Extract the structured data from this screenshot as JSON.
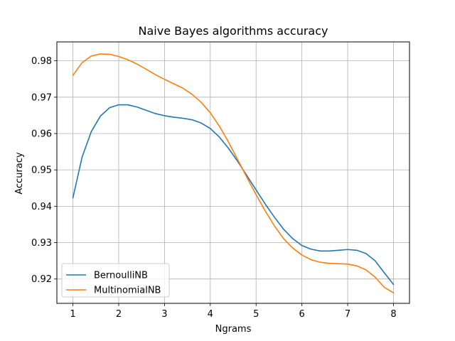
{
  "chart_data": {
    "type": "line",
    "title": "Naive Bayes algorithms accuracy",
    "xlabel": "Ngrams",
    "ylabel": "Accuracy",
    "xlim": [
      0.65,
      8.35
    ],
    "ylim": [
      0.9133,
      0.9852
    ],
    "x_ticks": [
      1,
      2,
      3,
      4,
      5,
      6,
      7,
      8
    ],
    "y_ticks": [
      0.92,
      0.93,
      0.94,
      0.95,
      0.96,
      0.97,
      0.98
    ],
    "y_tick_labels": [
      "0.92",
      "0.93",
      "0.94",
      "0.95",
      "0.96",
      "0.97",
      "0.98"
    ],
    "grid": true,
    "legend_position": "lower-left",
    "series": [
      {
        "name": "BernoulliNB",
        "color": "#1f77b4",
        "points": [
          [
            1.0,
            0.9423
          ],
          [
            1.2,
            0.9535
          ],
          [
            1.4,
            0.9605
          ],
          [
            1.6,
            0.9648
          ],
          [
            1.8,
            0.9671
          ],
          [
            2.0,
            0.9679
          ],
          [
            2.2,
            0.9679
          ],
          [
            2.4,
            0.9673
          ],
          [
            2.6,
            0.9664
          ],
          [
            2.8,
            0.9655
          ],
          [
            3.0,
            0.9649
          ],
          [
            3.2,
            0.9645
          ],
          [
            3.4,
            0.9642
          ],
          [
            3.6,
            0.9638
          ],
          [
            3.8,
            0.9629
          ],
          [
            4.0,
            0.9614
          ],
          [
            4.2,
            0.959
          ],
          [
            4.4,
            0.9559
          ],
          [
            4.6,
            0.9523
          ],
          [
            4.8,
            0.9484
          ],
          [
            5.0,
            0.9445
          ],
          [
            5.2,
            0.9406
          ],
          [
            5.4,
            0.937
          ],
          [
            5.6,
            0.9337
          ],
          [
            5.8,
            0.9311
          ],
          [
            6.0,
            0.9292
          ],
          [
            6.2,
            0.9282
          ],
          [
            6.4,
            0.9277
          ],
          [
            6.6,
            0.9277
          ],
          [
            6.8,
            0.9279
          ],
          [
            7.0,
            0.9281
          ],
          [
            7.2,
            0.9279
          ],
          [
            7.4,
            0.927
          ],
          [
            7.6,
            0.925
          ],
          [
            7.8,
            0.9217
          ],
          [
            8.0,
            0.9185
          ]
        ]
      },
      {
        "name": "MultinomialNB",
        "color": "#ff7f0e",
        "points": [
          [
            1.0,
            0.976
          ],
          [
            1.2,
            0.9795
          ],
          [
            1.4,
            0.9813
          ],
          [
            1.6,
            0.9819
          ],
          [
            1.8,
            0.9818
          ],
          [
            2.0,
            0.9812
          ],
          [
            2.2,
            0.9803
          ],
          [
            2.4,
            0.9791
          ],
          [
            2.6,
            0.9777
          ],
          [
            2.8,
            0.9762
          ],
          [
            3.0,
            0.9749
          ],
          [
            3.2,
            0.9737
          ],
          [
            3.4,
            0.9725
          ],
          [
            3.6,
            0.9708
          ],
          [
            3.8,
            0.9686
          ],
          [
            4.0,
            0.9657
          ],
          [
            4.2,
            0.962
          ],
          [
            4.4,
            0.9576
          ],
          [
            4.6,
            0.9528
          ],
          [
            4.8,
            0.9479
          ],
          [
            5.0,
            0.9432
          ],
          [
            5.2,
            0.9387
          ],
          [
            5.4,
            0.9346
          ],
          [
            5.6,
            0.9311
          ],
          [
            5.8,
            0.9285
          ],
          [
            6.0,
            0.9266
          ],
          [
            6.2,
            0.9253
          ],
          [
            6.4,
            0.9246
          ],
          [
            6.6,
            0.9243
          ],
          [
            6.8,
            0.9242
          ],
          [
            7.0,
            0.9241
          ],
          [
            7.2,
            0.9236
          ],
          [
            7.4,
            0.9225
          ],
          [
            7.6,
            0.9205
          ],
          [
            7.8,
            0.9177
          ],
          [
            8.0,
            0.9162
          ]
        ]
      }
    ]
  }
}
